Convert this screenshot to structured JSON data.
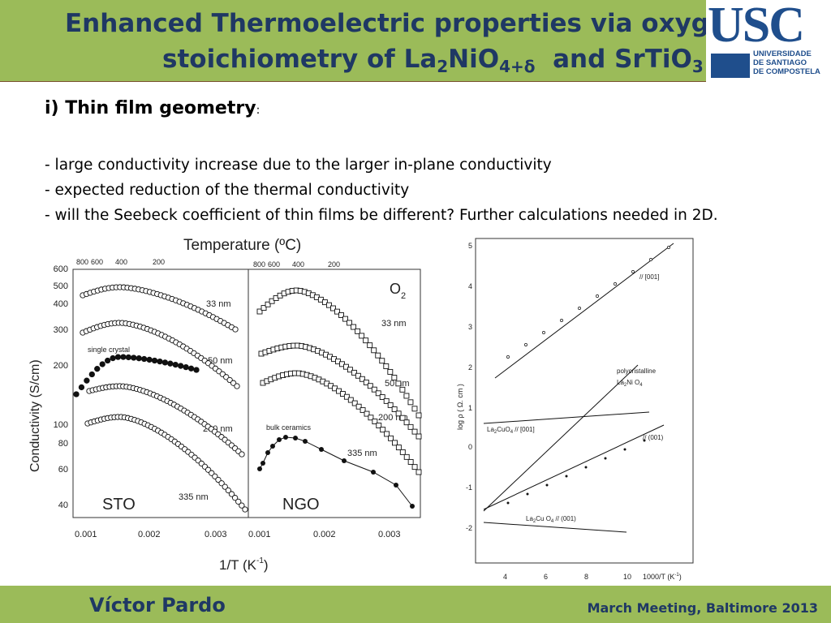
{
  "slide": {
    "title_line1": "Enhanced Thermoelectric properties via oxygen",
    "title_line2_a": "stoichiometry of La",
    "title_line2_b": "2",
    "title_line2_c": "NiO",
    "title_line2_d": "4+δ",
    "title_line2_e": "  and SrTiO",
    "title_line2_f": "3",
    "logo_main": "USC",
    "logo_line1": "UNIVERSIDADE",
    "logo_line2": "DE SANTIAGO",
    "logo_line3": "DE COMPOSTELA",
    "subheading": "i) Thin film geometry",
    "subheading_colon": ":",
    "bullets": [
      "- large conductivity increase due to the larger in-plane conductivity",
      "- expected reduction of the thermal conductivity",
      "- will the Seebeck coefficient of thin films be different? Further calculations needed in 2D."
    ],
    "footer_author": "Víctor Pardo",
    "footer_meeting": "March Meeting, Baltimore 2013"
  },
  "left_figure": {
    "top_axis_title": "Temperature (ºC)",
    "top_ticks_sto": [
      "800",
      "600",
      "400",
      "200"
    ],
    "top_ticks_ngo": [
      "800",
      "600",
      "400",
      "200"
    ],
    "ylabel": "Conductivity (S/cm)",
    "yticks": [
      "600",
      "500",
      "400",
      "300",
      "200",
      "100",
      "80",
      "60",
      "40"
    ],
    "xlabel": "1/T (K",
    "xlabel_sup": "-1",
    "xlabel_end": ")",
    "xticks_sto": [
      "0.001",
      "0.002",
      "0.003"
    ],
    "xticks_ngo": [
      "0.001",
      "0.002",
      "0.003"
    ],
    "panel_sto": "STO",
    "panel_ngo": "NGO",
    "gas": "O",
    "gas_sub": "2",
    "labels_sto": [
      "33 nm",
      "50 nm",
      "200 nm",
      "335 nm",
      "single crystal"
    ],
    "labels_ngo": [
      "33 nm",
      "50 nm",
      "200 nm",
      "335 nm",
      "bulk ceramics"
    ]
  },
  "right_figure": {
    "ylabel": "log  ρ  ( Ω. cm )",
    "yticks": [
      "5",
      "4",
      "3",
      "2",
      "1",
      "0",
      "-1",
      "-2"
    ],
    "xticks": [
      "4",
      "6",
      "8",
      "10"
    ],
    "xlabel": "1000/T (K",
    "xlabel_sup": "-1",
    "xlabel_end": ")",
    "labels": [
      "// [001]",
      "polycristalline",
      "La",
      "2",
      "Ni O",
      "4",
      "La",
      "2",
      "CuO",
      "4",
      " // [001]",
      "// (001)",
      "La",
      "2",
      "Cu O",
      "4",
      " // (001)"
    ]
  }
}
